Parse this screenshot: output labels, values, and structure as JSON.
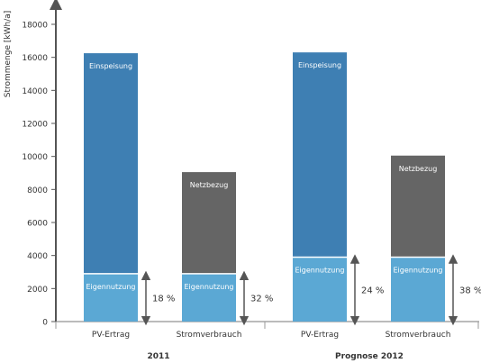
{
  "chart_data": {
    "type": "bar",
    "ylabel": "Strommenge [kWh/a]",
    "ylim": [
      0,
      18000
    ],
    "yticks": [
      0,
      2000,
      4000,
      6000,
      8000,
      10000,
      12000,
      14000,
      16000,
      18000
    ],
    "groups": [
      {
        "label": "2011",
        "bars": [
          {
            "category": "PV-Ertrag",
            "segments": [
              {
                "name": "Eigennutzung",
                "value": 2900,
                "color": "#5ba8d4"
              },
              {
                "name": "Einspeisung",
                "value": 13350,
                "color": "#3e7fb3"
              }
            ],
            "percent": "18 %"
          },
          {
            "category": "Stromverbrauch",
            "segments": [
              {
                "name": "Eigennutzung",
                "value": 2900,
                "color": "#5ba8d4"
              },
              {
                "name": "Netzbezug",
                "value": 6150,
                "color": "#656565"
              }
            ],
            "percent": "32 %"
          }
        ]
      },
      {
        "label": "Prognose 2012",
        "bars": [
          {
            "category": "PV-Ertrag",
            "segments": [
              {
                "name": "Eigennutzung",
                "value": 3900,
                "color": "#5ba8d4"
              },
              {
                "name": "Einspeisung",
                "value": 12400,
                "color": "#3e7fb3"
              }
            ],
            "percent": "24 %"
          },
          {
            "category": "Stromverbrauch",
            "segments": [
              {
                "name": "Eigennutzung",
                "value": 3900,
                "color": "#5ba8d4"
              },
              {
                "name": "Netzbezug",
                "value": 6150,
                "color": "#656565"
              }
            ],
            "percent": "38 %"
          }
        ]
      }
    ]
  }
}
